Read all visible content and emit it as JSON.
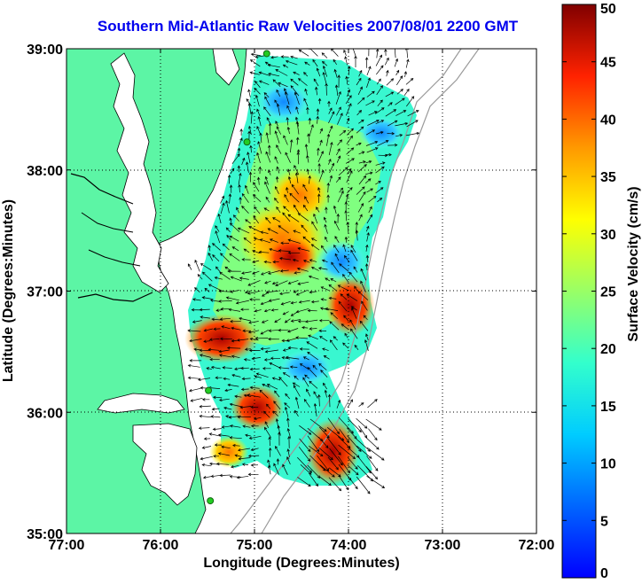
{
  "title": "Southern Mid-Atlantic Raw Velocities 2007/08/01 2200 GMT",
  "colors": {
    "ocean": "#ffffff",
    "land": "#5cf5a5",
    "title": "#0000ee",
    "gridline": "#000000",
    "bathymetry": "#9a9a9a",
    "station": "#22cc22"
  },
  "map": {
    "xlabel": "Longitude (Degrees:Minutes)",
    "ylabel": "Latitude (Degrees:Minutes)",
    "lon_range": [
      -77,
      -72
    ],
    "lat_range": [
      35,
      39
    ],
    "x_ticks": [
      {
        "value": -77,
        "label": "77:00"
      },
      {
        "value": -76,
        "label": "76:00"
      },
      {
        "value": -75,
        "label": "75:00"
      },
      {
        "value": -74,
        "label": "74:00"
      },
      {
        "value": -73,
        "label": "73:00"
      },
      {
        "value": -72,
        "label": "72:00"
      }
    ],
    "y_ticks": [
      {
        "value": 39,
        "label": "39:00"
      },
      {
        "value": 38,
        "label": "38:00"
      },
      {
        "value": 37,
        "label": "37:00"
      },
      {
        "value": 36,
        "label": "36:00"
      },
      {
        "value": 35,
        "label": "35:00"
      }
    ],
    "grid": "dotted",
    "stations": [
      {
        "lon": -74.87,
        "lat": 38.96
      },
      {
        "lon": -75.08,
        "lat": 38.23
      },
      {
        "lon": -75.49,
        "lat": 36.18
      },
      {
        "lon": -75.47,
        "lat": 35.27
      }
    ]
  },
  "colorbar": {
    "label": "Surface Velocity (cm/s)",
    "range": [
      0,
      50
    ],
    "ticks": [
      0,
      5,
      10,
      15,
      20,
      25,
      30,
      35,
      40,
      45,
      50
    ],
    "colormap": "jet"
  }
}
